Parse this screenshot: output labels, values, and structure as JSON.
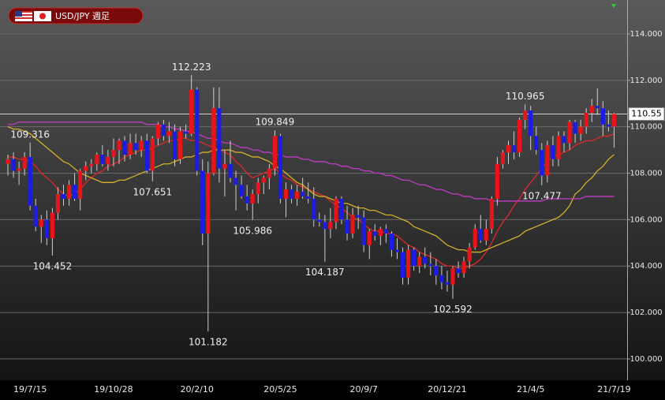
{
  "chart_data": {
    "type": "candlestick",
    "title": "USD/JPY 週足",
    "categories": [
      null,
      null,
      null,
      null,
      "19/7/15",
      null,
      null,
      null,
      null,
      null,
      null,
      null,
      null,
      null,
      null,
      null,
      null,
      null,
      null,
      "19/10/28",
      null,
      null,
      null,
      null,
      null,
      null,
      null,
      null,
      null,
      null,
      null,
      null,
      null,
      null,
      "20/2/10",
      null,
      null,
      null,
      null,
      null,
      null,
      null,
      null,
      null,
      null,
      null,
      null,
      null,
      null,
      "20/5/25",
      null,
      null,
      null,
      null,
      null,
      null,
      null,
      null,
      null,
      null,
      null,
      null,
      null,
      null,
      "20/9/7",
      null,
      null,
      null,
      null,
      null,
      null,
      null,
      null,
      null,
      null,
      null,
      null,
      null,
      null,
      "20/12/21",
      null,
      null,
      null,
      null,
      null,
      null,
      null,
      null,
      null,
      null,
      null,
      null,
      null,
      null,
      "21/4/5",
      null,
      null,
      null,
      null,
      null,
      null,
      null,
      null,
      null,
      null,
      null,
      null,
      null,
      null,
      "21/7/19"
    ],
    "open": [
      108.4,
      108.6,
      108.1,
      108.2,
      108.7,
      106.6,
      105.7,
      106.0,
      105.2,
      106.3,
      107.1,
      106.9,
      107.5,
      106.9,
      108.1,
      108.3,
      108.4,
      108.8,
      108.4,
      108.7,
      109.0,
      109.4,
      108.8,
      109.3,
      109.0,
      109.4,
      108.1,
      109.5,
      110.1,
      109.6,
      109.8,
      108.6,
      109.8,
      109.7,
      111.6,
      108.1,
      105.4,
      108.0,
      110.8,
      108.2,
      108.4,
      107.8,
      107.5,
      107.0,
      106.7,
      107.1,
      107.6,
      107.8,
      108.2,
      109.6,
      106.9,
      107.3,
      106.9,
      107.2,
      107.0,
      106.9,
      106.0,
      105.9,
      105.6,
      105.9,
      106.9,
      106.0,
      105.4,
      106.2,
      106.1,
      104.9,
      105.5,
      105.3,
      105.6,
      105.4,
      104.7,
      104.6,
      103.5,
      104.7,
      104.0,
      104.4,
      104.1,
      104.0,
      103.6,
      103.3,
      103.2,
      103.9,
      103.7,
      104.2,
      104.8,
      105.6,
      105.1,
      105.6,
      106.9,
      108.4,
      108.9,
      109.2,
      108.9,
      110.3,
      110.7,
      109.6,
      109.0,
      107.9,
      109.2,
      108.6,
      109.6,
      109.3,
      110.2,
      109.7,
      110.0,
      110.6,
      110.9,
      110.8,
      110.1,
      110.0
    ],
    "high": [
      108.8,
      108.9,
      108.5,
      108.9,
      109.316,
      106.9,
      106.2,
      106.4,
      106.5,
      107.4,
      107.5,
      107.7,
      108.0,
      108.2,
      108.5,
      108.6,
      108.9,
      109.2,
      109.0,
      109.5,
      109.5,
      109.6,
      109.7,
      109.7,
      109.6,
      109.7,
      109.6,
      110.2,
      110.3,
      110.2,
      110.1,
      110.0,
      110.1,
      112.223,
      111.7,
      108.6,
      108.5,
      111.7,
      111.7,
      109.0,
      109.4,
      108.1,
      107.9,
      107.5,
      107.3,
      107.8,
      107.9,
      108.4,
      109.849,
      109.7,
      107.6,
      107.5,
      107.5,
      107.8,
      107.6,
      107.4,
      106.3,
      106.2,
      106.5,
      107.0,
      107.0,
      106.6,
      106.5,
      106.6,
      106.4,
      105.6,
      105.8,
      105.7,
      105.8,
      105.5,
      105.2,
      104.8,
      104.9,
      104.8,
      104.6,
      104.8,
      104.6,
      104.3,
      104.0,
      103.8,
      104.0,
      104.2,
      104.4,
      105.0,
      105.8,
      106.2,
      106.0,
      107.0,
      108.7,
      109.0,
      109.4,
      109.8,
      110.4,
      110.965,
      110.9,
      110.0,
      109.3,
      109.4,
      109.6,
      109.8,
      109.8,
      110.3,
      110.3,
      110.3,
      110.8,
      111.2,
      111.66,
      111.1,
      110.7,
      110.6
    ],
    "low": [
      107.9,
      107.8,
      107.5,
      107.9,
      106.4,
      105.5,
      105.0,
      104.9,
      104.452,
      106.0,
      106.6,
      106.6,
      106.8,
      106.4,
      107.7,
      108.0,
      108.1,
      108.3,
      108.1,
      108.3,
      108.4,
      108.5,
      108.6,
      108.8,
      108.7,
      108.0,
      107.651,
      109.2,
      109.4,
      109.3,
      108.3,
      108.4,
      109.5,
      109.6,
      107.9,
      104.9,
      101.182,
      107.9,
      107.6,
      107.0,
      107.6,
      106.4,
      106.9,
      106.4,
      105.986,
      106.7,
      107.1,
      107.3,
      107.9,
      106.7,
      106.1,
      106.7,
      106.6,
      106.9,
      106.7,
      105.7,
      105.7,
      104.187,
      105.2,
      105.6,
      105.8,
      105.1,
      105.2,
      105.6,
      104.6,
      104.3,
      105.1,
      104.9,
      105.0,
      104.4,
      104.3,
      103.2,
      103.2,
      103.8,
      103.7,
      103.9,
      103.6,
      103.2,
      103.0,
      102.9,
      102.592,
      103.5,
      103.5,
      103.9,
      104.7,
      105.0,
      104.9,
      105.4,
      106.6,
      108.2,
      108.4,
      108.6,
      108.7,
      109.9,
      109.0,
      108.8,
      107.477,
      107.6,
      108.3,
      108.3,
      108.9,
      109.0,
      109.3,
      109.4,
      109.7,
      110.2,
      110.5,
      109.6,
      109.8,
      109.1
    ],
    "close": [
      108.6,
      108.1,
      108.2,
      108.7,
      106.6,
      105.7,
      106.0,
      105.2,
      106.3,
      107.1,
      106.9,
      107.5,
      106.9,
      108.1,
      108.3,
      108.4,
      108.8,
      108.4,
      108.7,
      109.0,
      109.4,
      108.8,
      109.3,
      109.0,
      109.4,
      108.1,
      109.5,
      110.1,
      109.6,
      109.8,
      108.6,
      109.8,
      109.7,
      111.6,
      108.1,
      105.4,
      108.0,
      110.8,
      108.2,
      108.4,
      107.8,
      107.5,
      107.0,
      106.7,
      107.1,
      107.6,
      107.8,
      108.2,
      109.6,
      106.9,
      107.3,
      106.9,
      107.2,
      107.0,
      106.9,
      106.0,
      105.9,
      105.6,
      105.9,
      106.9,
      106.0,
      105.4,
      106.2,
      106.1,
      104.9,
      105.5,
      105.3,
      105.6,
      105.4,
      104.7,
      104.6,
      103.5,
      104.7,
      104.0,
      104.4,
      104.1,
      104.0,
      103.6,
      103.3,
      103.2,
      103.9,
      103.7,
      104.2,
      104.8,
      105.6,
      105.1,
      105.6,
      106.9,
      108.4,
      108.9,
      109.2,
      108.9,
      110.3,
      110.7,
      109.6,
      109.0,
      107.9,
      109.2,
      108.6,
      109.6,
      109.3,
      110.2,
      109.7,
      110.0,
      110.6,
      110.9,
      110.8,
      110.1,
      110.0,
      110.55
    ],
    "up_color": "#e8141b",
    "down_color": "#1c1ce6",
    "series": [
      {
        "color": "#e02828",
        "values": [
          108.7,
          108.7,
          108.6,
          108.6,
          108.5,
          108.3,
          108.0,
          107.8,
          107.6,
          107.3,
          107.1,
          107.0,
          107.1,
          107.3,
          107.6,
          107.8,
          108.0,
          108.1,
          108.3,
          108.4,
          108.5,
          108.7,
          108.8,
          108.9,
          109.0,
          109.0,
          109.1,
          109.2,
          109.3,
          109.4,
          109.4,
          109.5,
          109.5,
          109.4,
          109.4,
          109.3,
          109.2,
          109.1,
          109.0,
          108.9,
          108.8,
          108.5,
          108.3,
          108.0,
          107.8,
          107.9,
          108.0,
          108.1,
          108.2,
          108.0,
          107.8,
          107.7,
          107.5,
          107.4,
          107.3,
          107.2,
          107.1,
          107.0,
          106.8,
          106.6,
          106.5,
          106.3,
          106.1,
          106.0,
          105.8,
          105.6,
          105.5,
          105.5,
          105.4,
          105.4,
          105.3,
          105.1,
          104.9,
          104.8,
          104.6,
          104.5,
          104.4,
          104.3,
          104.1,
          104.0,
          104.0,
          103.9,
          103.9,
          104.0,
          104.1,
          104.3,
          104.6,
          105.0,
          105.5,
          105.9,
          106.2,
          106.6,
          106.9,
          107.3,
          107.6,
          107.9,
          108.2,
          108.5,
          108.7,
          108.8,
          108.9,
          109.0,
          109.2,
          109.3,
          109.4,
          109.4,
          109.5,
          109.6,
          109.6,
          109.7
        ]
      },
      {
        "color": "#d4b02a",
        "values": [
          110.0,
          109.9,
          109.9,
          109.8,
          109.7,
          109.5,
          109.3,
          109.1,
          108.9,
          108.7,
          108.5,
          108.4,
          108.2,
          108.0,
          107.9,
          107.8,
          107.7,
          107.6,
          107.6,
          107.6,
          107.7,
          107.7,
          107.8,
          107.9,
          108.0,
          108.1,
          108.2,
          108.3,
          108.4,
          108.4,
          108.5,
          108.6,
          108.7,
          108.7,
          108.8,
          108.9,
          108.9,
          109.0,
          109.0,
          109.0,
          109.0,
          108.9,
          108.9,
          108.8,
          108.7,
          108.7,
          108.6,
          108.5,
          108.3,
          108.2,
          108.0,
          107.8,
          107.6,
          107.5,
          107.3,
          107.1,
          107.0,
          107.0,
          106.9,
          106.8,
          106.7,
          106.7,
          106.6,
          106.5,
          106.5,
          106.4,
          106.4,
          106.3,
          106.2,
          106.2,
          106.1,
          106.0,
          105.9,
          105.7,
          105.6,
          105.5,
          105.4,
          105.3,
          105.1,
          104.9,
          104.8,
          104.7,
          104.7,
          104.6,
          104.6,
          104.6,
          104.7,
          104.8,
          104.9,
          105.0,
          105.1,
          105.2,
          105.3,
          105.5,
          105.6,
          105.7,
          105.8,
          105.9,
          106.0,
          106.1,
          106.3,
          106.6,
          107.1,
          107.3,
          107.6,
          107.8,
          108.1,
          108.3,
          108.6,
          108.8
        ]
      },
      {
        "color": "#c53ac8",
        "values": [
          110.1,
          110.1,
          110.2,
          110.2,
          110.2,
          110.2,
          110.2,
          110.2,
          110.2,
          110.2,
          110.2,
          110.2,
          110.2,
          110.2,
          110.2,
          110.2,
          110.2,
          110.2,
          110.2,
          110.2,
          110.2,
          110.2,
          110.2,
          110.2,
          110.2,
          110.1,
          110.1,
          110.1,
          110.0,
          110.0,
          109.9,
          109.9,
          109.8,
          109.8,
          109.7,
          109.6,
          109.5,
          109.5,
          109.4,
          109.3,
          109.3,
          109.2,
          109.1,
          109.1,
          109.0,
          109.0,
          108.9,
          108.9,
          108.8,
          108.8,
          108.7,
          108.7,
          108.7,
          108.6,
          108.6,
          108.5,
          108.5,
          108.5,
          108.4,
          108.4,
          108.3,
          108.3,
          108.2,
          108.2,
          108.1,
          108.1,
          108.0,
          108.0,
          107.9,
          107.9,
          107.8,
          107.7,
          107.7,
          107.6,
          107.5,
          107.5,
          107.4,
          107.3,
          107.3,
          107.2,
          107.1,
          107.1,
          107.0,
          107.0,
          106.9,
          106.9,
          106.9,
          106.8,
          106.8,
          106.8,
          106.8,
          106.8,
          106.8,
          106.8,
          106.8,
          106.8,
          106.8,
          106.9,
          106.9,
          106.9,
          106.9,
          106.9,
          106.9,
          106.9,
          107.0,
          107.0,
          107.0,
          107.0,
          107.0,
          107.0
        ]
      }
    ],
    "annotations": [
      109.316,
      104.452,
      112.223,
      101.182,
      107.651,
      109.849,
      105.986,
      104.187,
      102.592,
      110.965,
      107.477
    ],
    "last_price": 110.55,
    "ylim": [
      99.08,
      115.46
    ],
    "yticks": [
      {
        "value": 100,
        "label": "100.000"
      },
      {
        "value": 102,
        "label": "102.000"
      },
      {
        "value": 104,
        "label": "104.000"
      },
      {
        "value": 106,
        "label": "106.000"
      },
      {
        "value": 108,
        "label": "108.000"
      },
      {
        "value": 110,
        "label": "110.000"
      },
      {
        "value": 112,
        "label": "112.000"
      },
      {
        "value": 114,
        "label": "114.000"
      }
    ],
    "grid": true
  }
}
